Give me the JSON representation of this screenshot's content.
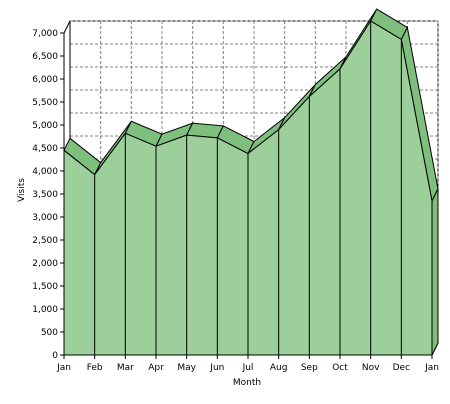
{
  "chart_data": {
    "type": "area",
    "title": "",
    "xlabel": "Month",
    "ylabel": "Visits",
    "categories": [
      "Jan",
      "Feb",
      "Mar",
      "Apr",
      "May",
      "Jun",
      "Jul",
      "Aug",
      "Sep",
      "Oct",
      "Nov",
      "Dec",
      "Jan"
    ],
    "values": [
      4450,
      3920,
      4820,
      4540,
      4780,
      4720,
      4380,
      4900,
      5620,
      6220,
      7260,
      6860,
      3350
    ],
    "ylim": [
      0,
      7000
    ],
    "yticks": [
      0,
      500,
      1000,
      1500,
      2000,
      2500,
      3000,
      3500,
      4000,
      4500,
      5000,
      5500,
      6000,
      6500,
      7000
    ],
    "ytick_labels": [
      "0",
      "500",
      "1,000",
      "1,500",
      "2,000",
      "2,500",
      "3,000",
      "3,500",
      "4,000",
      "4,500",
      "5,000",
      "5,500",
      "6,000",
      "6,500",
      "7,000"
    ],
    "grid": true,
    "legend": "none",
    "colors": {
      "fill_front": "#9ccf9a",
      "fill_top": "#7fbf7d",
      "edge": "#000000",
      "grid": "#808080",
      "background": "#ffffff"
    }
  }
}
